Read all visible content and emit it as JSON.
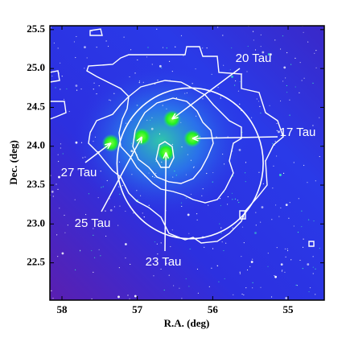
{
  "chart_data": {
    "type": "sky-map",
    "xlabel": "R.A. (deg)",
    "ylabel": "Dec. (deg)",
    "xlim": [
      58.16,
      54.52
    ],
    "ylim": [
      22.02,
      25.55
    ],
    "xticks": [
      58,
      57,
      56,
      55
    ],
    "yticks": [
      22.5,
      {
        "value": 23,
        "label": "23.0"
      },
      23.5,
      {
        "value": 24,
        "label": "24.0"
      },
      24.5,
      {
        "value": 25,
        "label": "25.0"
      },
      25.5
    ],
    "stars": [
      {
        "name": "20 Tau",
        "ra": 56.54,
        "dec": 24.35
      },
      {
        "name": "17 Tau",
        "ra": 56.27,
        "dec": 24.1
      },
      {
        "name": "27 Tau",
        "ra": 57.35,
        "dec": 24.04
      },
      {
        "name": "25 Tau",
        "ra": 56.94,
        "dec": 24.12
      },
      {
        "name": "23 Tau",
        "ra": 56.62,
        "dec": 23.92
      }
    ],
    "circle": {
      "ra": 56.3,
      "dec": 23.78,
      "radius": 0.97
    }
  }
}
